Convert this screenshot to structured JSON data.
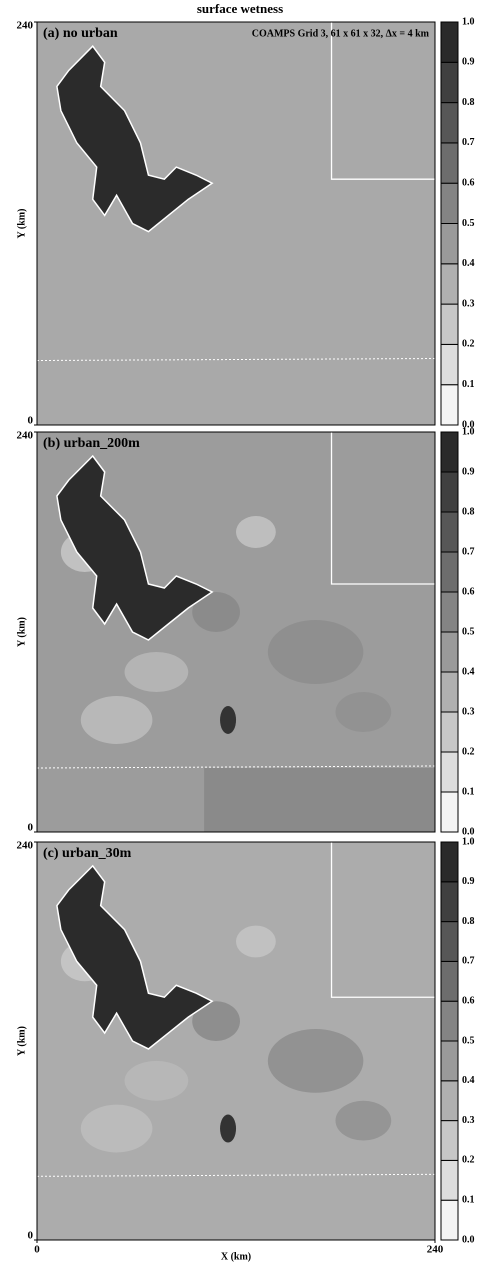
{
  "chart_data": [
    {
      "type": "contour",
      "title": "surface wetness",
      "label": "(a) no urban",
      "annotation": "COAMPS Grid 3,  61 x 61 x 32,    Δx = 4 km",
      "ylabel": "Y (km)",
      "xlim": [
        0,
        240
      ],
      "ylim": [
        0,
        240
      ],
      "yticks": [
        0,
        240
      ],
      "clim": [
        0,
        1
      ],
      "cticks": [
        {
          "value": 0,
          "label": "0.0"
        },
        0.1,
        0.2,
        0.3,
        0.4,
        0.5,
        0.6,
        0.7,
        0.8,
        0.9,
        {
          "value": 1,
          "label": "1.0"
        }
      ]
    },
    {
      "type": "contour",
      "label": "(b) urban_200m",
      "ylabel": "Y (km)",
      "xlim": [
        0,
        240
      ],
      "ylim": [
        0,
        240
      ],
      "yticks": [
        0,
        240
      ],
      "clim": [
        0,
        1
      ],
      "cticks": [
        {
          "value": 0,
          "label": "0.0"
        },
        0.1,
        0.2,
        0.3,
        0.4,
        0.5,
        0.6,
        0.7,
        0.8,
        0.9,
        {
          "value": 1,
          "label": "1.0"
        }
      ]
    },
    {
      "type": "contour",
      "label": "(c) urban_30m",
      "ylabel": "Y (km)",
      "xlabel": "X (km)",
      "xlim": [
        0,
        240
      ],
      "ylim": [
        0,
        240
      ],
      "xticks": [
        0,
        240
      ],
      "yticks": [
        0,
        240
      ],
      "clim": [
        0,
        1
      ],
      "cticks": [
        {
          "value": 0,
          "label": "0.0"
        },
        0.1,
        0.2,
        0.3,
        0.4,
        0.5,
        0.6,
        0.7,
        0.8,
        0.9,
        {
          "value": 1,
          "label": "1.0"
        }
      ]
    }
  ]
}
